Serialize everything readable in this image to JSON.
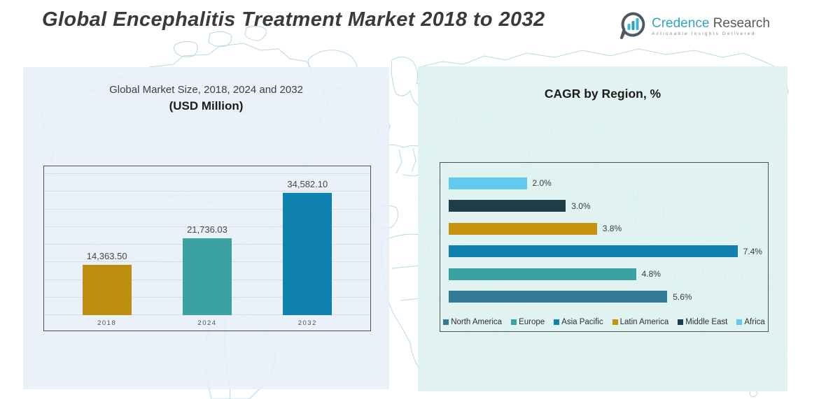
{
  "header": {
    "title": "Global Encephalitis Treatment Market 2018 to 2032"
  },
  "logo": {
    "brand_primary": "Credence",
    "brand_secondary": "Research",
    "tagline": "Actionable Insights Delivered"
  },
  "left_panel": {
    "title_line1": "Global Market Size, 2018, 2024 and 2032",
    "title_line2": "(USD Million)"
  },
  "right_panel": {
    "title": "CAGR by Region, %"
  },
  "theme": {
    "gold": "#BE8E11",
    "teal": "#3AA2A2",
    "blue": "#1080AE",
    "steel_blue": "#337A96",
    "dark_navy": "#1E3E49",
    "sky_blue": "#63C9F1",
    "left_panel_bg": "#E7EFF7",
    "right_panel_bg": "#DDF1EE",
    "map_line": "#B6DAE4",
    "brand_teal": "#2FA3C7",
    "title_text": "#3A3A3A"
  },
  "chart_data": [
    {
      "type": "bar",
      "orientation": "vertical",
      "title": "Global Market Size, 2018, 2024 and 2032 (USD Million)",
      "categories": [
        "2018",
        "2024",
        "2032"
      ],
      "values": [
        14363.5,
        21736.03,
        34582.1
      ],
      "value_labels": [
        "14,363.50",
        "21,736.03",
        "34,582.10"
      ],
      "bar_colors": [
        "#BE8E11",
        "#3AA2A2",
        "#1080AE"
      ],
      "ylabel": "USD Million",
      "ylim": [
        0,
        40000
      ],
      "grid_step": 5000,
      "grid": true,
      "legend_position": "none"
    },
    {
      "type": "bar",
      "orientation": "horizontal",
      "title": "CAGR by Region, %",
      "categories": [
        "Africa",
        "Middle East",
        "Latin America",
        "Asia Pacific",
        "Europe",
        "North America"
      ],
      "values": [
        2.0,
        3.0,
        3.8,
        7.4,
        4.8,
        5.6
      ],
      "value_labels": [
        "2.0%",
        "3.0%",
        "3.8%",
        "7.4%",
        "4.8%",
        "5.6%"
      ],
      "bar_colors": [
        "#63C9F1",
        "#1E3E49",
        "#C8920F",
        "#1080AE",
        "#3AA2A2",
        "#337A96"
      ],
      "xlim": [
        0,
        8
      ],
      "grid": false,
      "legend": {
        "position": "bottom",
        "items": [
          "North America",
          "Europe",
          "Asia Pacific",
          "Latin America",
          "Middle East",
          "Africa"
        ],
        "colors": [
          "#337A96",
          "#3AA2A2",
          "#1080AE",
          "#C8920F",
          "#1E3E49",
          "#63C9F1"
        ]
      }
    }
  ]
}
